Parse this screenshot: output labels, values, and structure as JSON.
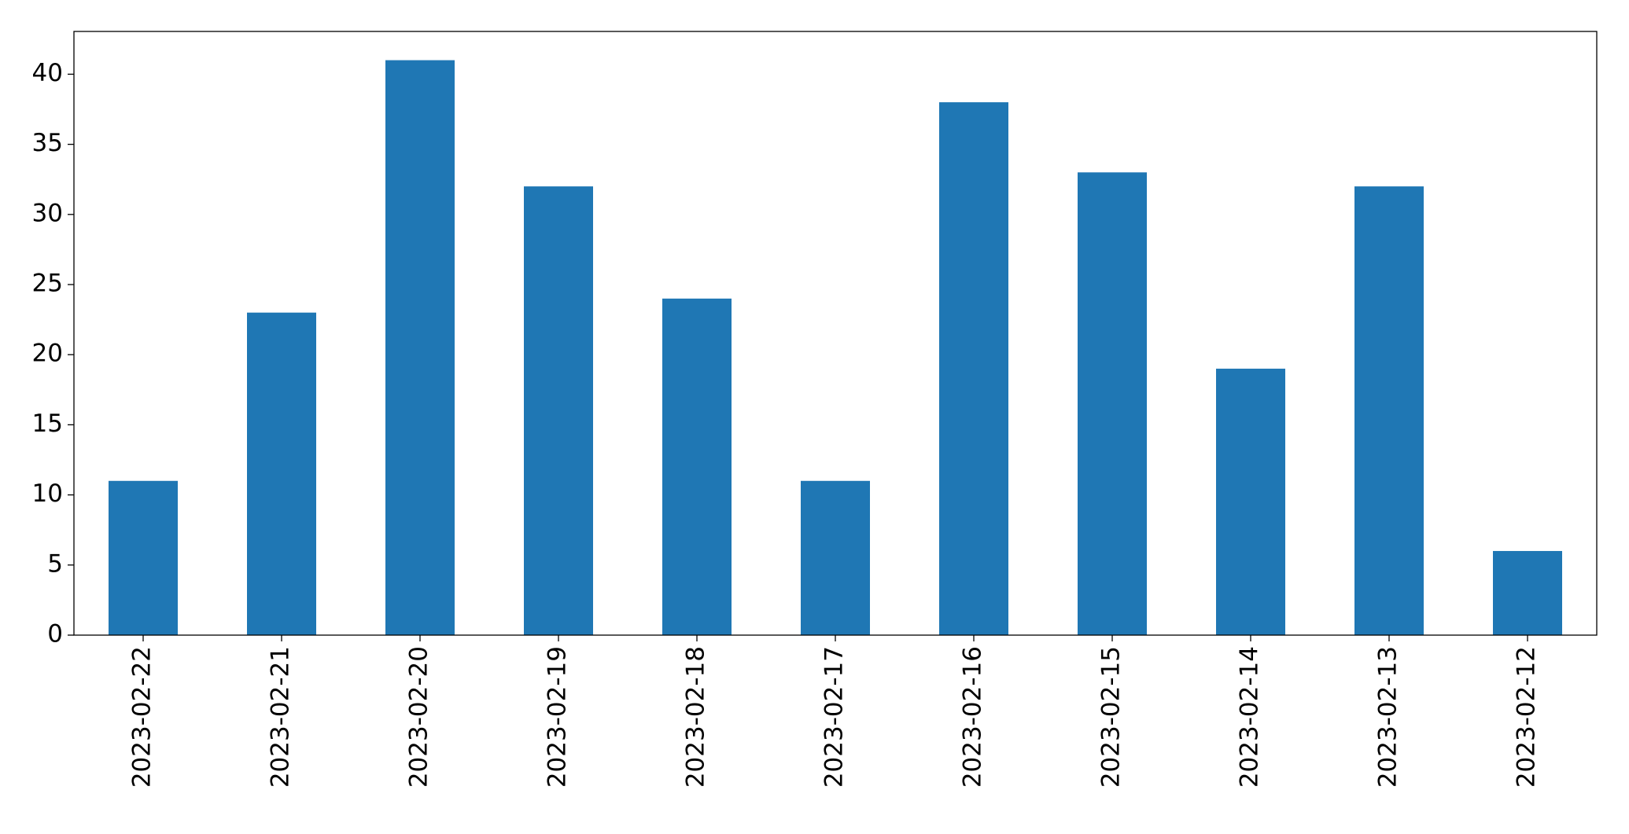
{
  "chart_data": {
    "type": "bar",
    "categories": [
      "2023-02-22",
      "2023-02-21",
      "2023-02-20",
      "2023-02-19",
      "2023-02-18",
      "2023-02-17",
      "2023-02-16",
      "2023-02-15",
      "2023-02-14",
      "2023-02-13",
      "2023-02-12"
    ],
    "values": [
      11,
      23,
      41,
      32,
      24,
      11,
      38,
      33,
      19,
      32,
      6
    ],
    "color": "#1f77b4",
    "ylim": [
      0,
      43.05
    ],
    "yticks": [
      0,
      5,
      10,
      15,
      20,
      25,
      30,
      35,
      40
    ],
    "grid": false
  }
}
